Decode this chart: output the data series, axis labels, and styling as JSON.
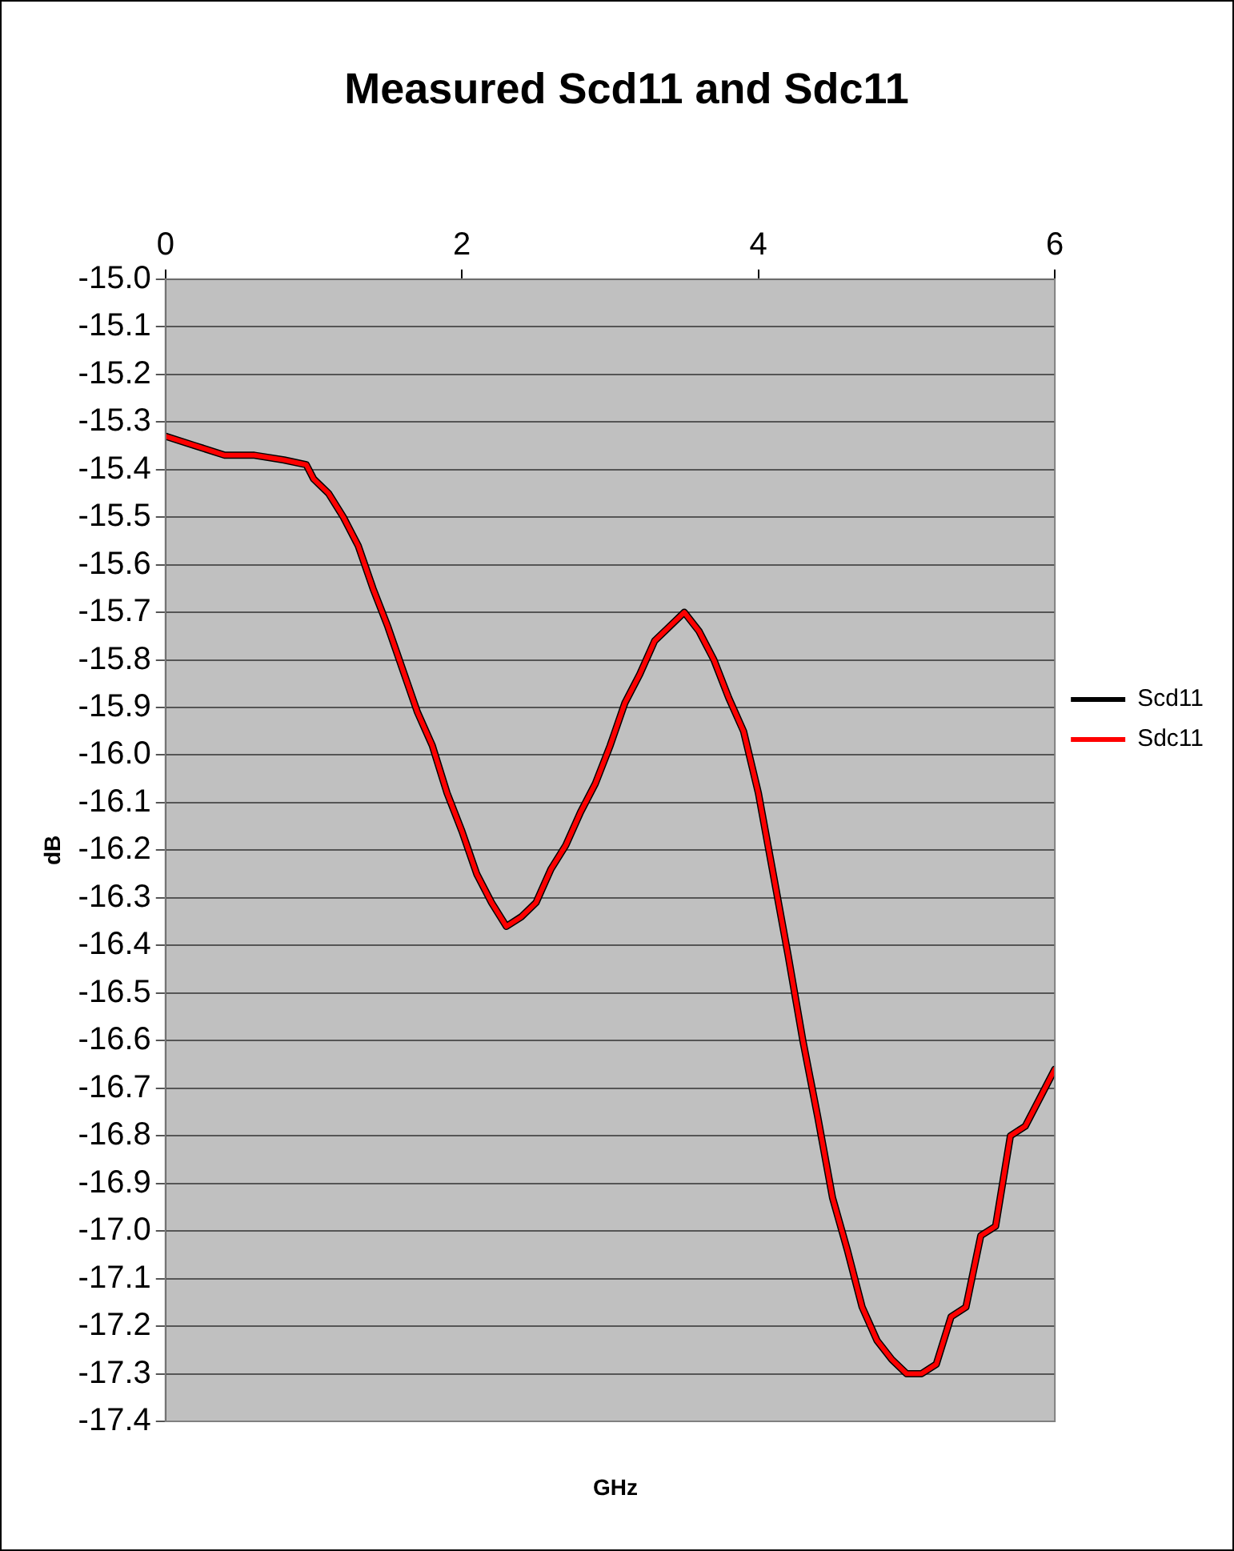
{
  "chart_data": {
    "type": "line",
    "title": "Measured Scd11 and Sdc11",
    "xlabel": "GHz",
    "ylabel": "dB",
    "x": [
      0,
      0.2,
      0.4,
      0.6,
      0.8,
      0.95,
      1.0,
      1.1,
      1.2,
      1.3,
      1.4,
      1.5,
      1.6,
      1.7,
      1.8,
      1.9,
      2.0,
      2.1,
      2.2,
      2.3,
      2.4,
      2.5,
      2.6,
      2.7,
      2.8,
      2.9,
      3.0,
      3.1,
      3.2,
      3.3,
      3.4,
      3.5,
      3.6,
      3.7,
      3.8,
      3.9,
      4.0,
      4.1,
      4.2,
      4.3,
      4.4,
      4.5,
      4.6,
      4.7,
      4.8,
      4.9,
      5.0,
      5.1,
      5.2,
      5.3,
      5.4,
      5.5,
      5.6,
      5.7,
      5.8,
      5.9,
      6.0
    ],
    "series": [
      {
        "name": "Scd11",
        "color": "#000000",
        "values": [
          -15.33,
          -15.35,
          -15.37,
          -15.37,
          -15.38,
          -15.39,
          -15.42,
          -15.45,
          -15.5,
          -15.56,
          -15.65,
          -15.73,
          -15.82,
          -15.91,
          -15.98,
          -16.08,
          -16.16,
          -16.25,
          -16.31,
          -16.36,
          -16.34,
          -16.31,
          -16.24,
          -16.19,
          -16.12,
          -16.06,
          -15.98,
          -15.89,
          -15.83,
          -15.76,
          -15.73,
          -15.7,
          -15.74,
          -15.8,
          -15.88,
          -15.95,
          -16.08,
          -16.25,
          -16.42,
          -16.6,
          -16.76,
          -16.93,
          -17.04,
          -17.16,
          -17.23,
          -17.27,
          -17.3,
          -17.3,
          -17.28,
          -17.18,
          -17.16,
          -17.01,
          -16.99,
          -16.8,
          -16.78,
          -16.72,
          -16.66
        ]
      },
      {
        "name": "Sdc11",
        "color": "#ff0000",
        "values": [
          -15.33,
          -15.35,
          -15.37,
          -15.37,
          -15.38,
          -15.39,
          -15.42,
          -15.45,
          -15.5,
          -15.56,
          -15.65,
          -15.73,
          -15.82,
          -15.91,
          -15.98,
          -16.08,
          -16.16,
          -16.25,
          -16.31,
          -16.36,
          -16.34,
          -16.31,
          -16.24,
          -16.19,
          -16.12,
          -16.06,
          -15.98,
          -15.89,
          -15.83,
          -15.76,
          -15.73,
          -15.7,
          -15.74,
          -15.8,
          -15.88,
          -15.95,
          -16.08,
          -16.25,
          -16.42,
          -16.6,
          -16.76,
          -16.93,
          -17.04,
          -17.16,
          -17.23,
          -17.27,
          -17.3,
          -17.3,
          -17.28,
          -17.18,
          -17.16,
          -17.01,
          -16.99,
          -16.8,
          -16.78,
          -16.72,
          -16.66
        ]
      }
    ],
    "xlim": [
      0,
      6
    ],
    "xticks": [
      0,
      2,
      4,
      6
    ],
    "ylim": [
      -17.4,
      -15.0
    ],
    "yticks": [
      {
        "value": -15.0,
        "label": "-15.0"
      },
      -15.1,
      -15.2,
      -15.3,
      -15.4,
      -15.5,
      -15.6,
      -15.7,
      -15.8,
      -15.9,
      {
        "value": -16.0,
        "label": "-16.0"
      },
      -16.1,
      -16.2,
      -16.3,
      -16.4,
      -16.5,
      -16.6,
      -16.7,
      -16.8,
      -16.9,
      {
        "value": -17.0,
        "label": "-17.0"
      },
      -17.1,
      -17.2,
      -17.3,
      -17.4
    ],
    "grid": "y",
    "legend": "right",
    "marker": "none",
    "line_style": "solid"
  }
}
